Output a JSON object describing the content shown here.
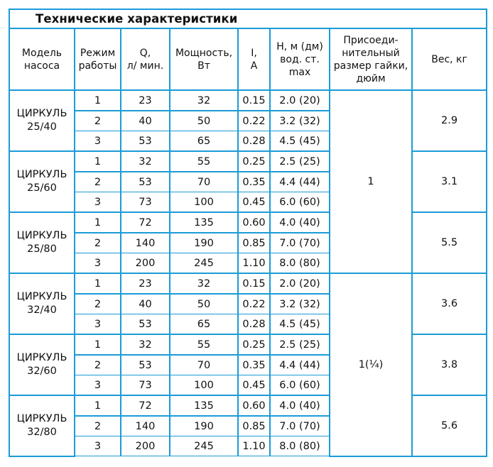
{
  "title": "Технические характеристики",
  "headers": {
    "model": [
      "Модель",
      "насоса"
    ],
    "mode": [
      "Режим",
      "работы"
    ],
    "flow": [
      "Q,",
      "л/ мин."
    ],
    "power": [
      "Мощность,",
      "Вт"
    ],
    "current": [
      "I,",
      "A"
    ],
    "head": [
      "H, м (дм)",
      "вод. ст.",
      "max"
    ],
    "connection": [
      "Присоеди-",
      "нительный",
      "размер гайки,",
      "дюйм"
    ],
    "weight": [
      "Вес, кг"
    ]
  },
  "connection_groups": [
    {
      "value": "1",
      "rowspan": 9
    },
    {
      "value": "1(¼)",
      "rowspan": 9
    }
  ],
  "models": [
    {
      "name": [
        "ЦИРКУЛЬ",
        "25/40"
      ],
      "weight": "2.9",
      "rows": [
        {
          "mode": "1",
          "q": "23",
          "power": "32",
          "i": "0.15",
          "h": "2.0 (20)"
        },
        {
          "mode": "2",
          "q": "40",
          "power": "50",
          "i": "0.22",
          "h": "3.2 (32)"
        },
        {
          "mode": "3",
          "q": "53",
          "power": "65",
          "i": "0.28",
          "h": "4.5 (45)"
        }
      ]
    },
    {
      "name": [
        "ЦИРКУЛЬ",
        "25/60"
      ],
      "weight": "3.1",
      "rows": [
        {
          "mode": "1",
          "q": "32",
          "power": "55",
          "i": "0.25",
          "h": "2.5 (25)"
        },
        {
          "mode": "2",
          "q": "53",
          "power": "70",
          "i": "0.35",
          "h": "4.4 (44)"
        },
        {
          "mode": "3",
          "q": "73",
          "power": "100",
          "i": "0.45",
          "h": "6.0 (60)"
        }
      ]
    },
    {
      "name": [
        "ЦИРКУЛЬ",
        "25/80"
      ],
      "weight": "5.5",
      "rows": [
        {
          "mode": "1",
          "q": "72",
          "power": "135",
          "i": "0.60",
          "h": "4.0 (40)"
        },
        {
          "mode": "2",
          "q": "140",
          "power": "190",
          "i": "0.85",
          "h": "7.0 (70)"
        },
        {
          "mode": "3",
          "q": "200",
          "power": "245",
          "i": "1.10",
          "h": "8.0 (80)"
        }
      ]
    },
    {
      "name": [
        "ЦИРКУЛЬ",
        "32/40"
      ],
      "weight": "3.6",
      "rows": [
        {
          "mode": "1",
          "q": "23",
          "power": "32",
          "i": "0.15",
          "h": "2.0 (20)"
        },
        {
          "mode": "2",
          "q": "40",
          "power": "50",
          "i": "0.22",
          "h": "3.2 (32)"
        },
        {
          "mode": "3",
          "q": "53",
          "power": "65",
          "i": "0.28",
          "h": "4.5 (45)"
        }
      ]
    },
    {
      "name": [
        "ЦИРКУЛЬ",
        "32/60"
      ],
      "weight": "3.8",
      "rows": [
        {
          "mode": "1",
          "q": "32",
          "power": "55",
          "i": "0.25",
          "h": "2.5 (25)"
        },
        {
          "mode": "2",
          "q": "53",
          "power": "70",
          "i": "0.35",
          "h": "4.4 (44)"
        },
        {
          "mode": "3",
          "q": "73",
          "power": "100",
          "i": "0.45",
          "h": "6.0 (60)"
        }
      ]
    },
    {
      "name": [
        "ЦИРКУЛЬ",
        "32/80"
      ],
      "weight": "5.6",
      "rows": [
        {
          "mode": "1",
          "q": "72",
          "power": "135",
          "i": "0.60",
          "h": "4.0 (40)"
        },
        {
          "mode": "2",
          "q": "140",
          "power": "190",
          "i": "0.85",
          "h": "7.0 (70)"
        },
        {
          "mode": "3",
          "q": "200",
          "power": "245",
          "i": "1.10",
          "h": "8.0 (80)"
        }
      ]
    }
  ],
  "colors": {
    "border": "#1b9bd7",
    "text": "#111111",
    "background": "#ffffff"
  }
}
